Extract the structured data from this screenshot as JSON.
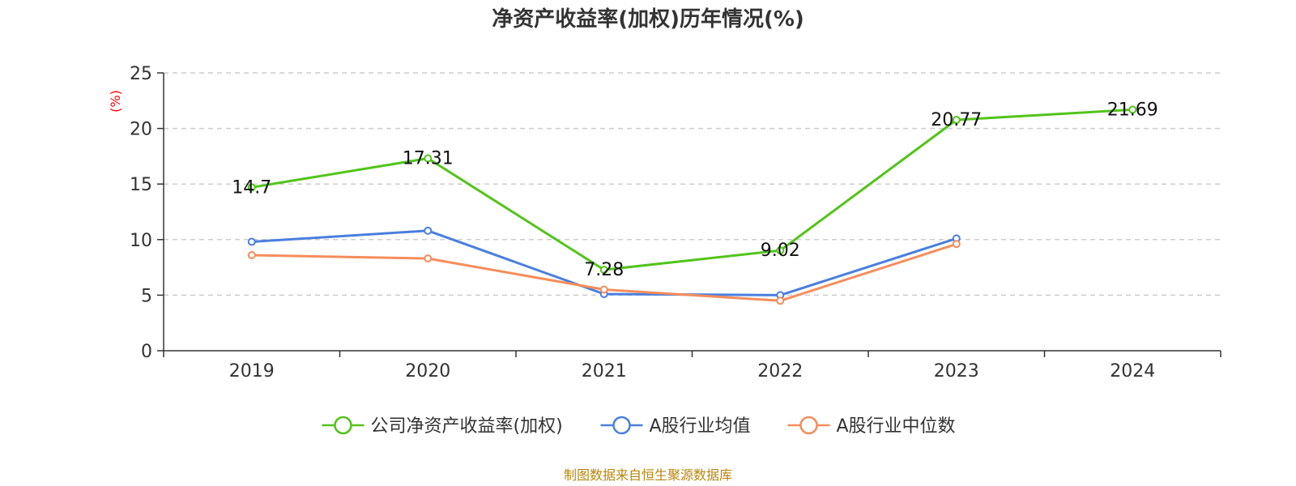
{
  "chart_data": {
    "type": "line",
    "title": "净资产收益率(加权)历年情况(%)",
    "ylabel": "(%)",
    "xlabel": "",
    "categories": [
      "2019",
      "2020",
      "2021",
      "2022",
      "2023",
      "2024"
    ],
    "ylim": [
      0,
      25
    ],
    "yticks": [
      0,
      5,
      10,
      15,
      20,
      25
    ],
    "grid": true,
    "legend_position": "bottom",
    "series": [
      {
        "name": "公司净资产收益率(加权)",
        "color": "#52c41a",
        "values": [
          14.7,
          17.31,
          7.28,
          9.02,
          20.77,
          21.69
        ],
        "show_labels": true
      },
      {
        "name": "A股行业均值",
        "color": "#4a7fdd",
        "values": [
          9.8,
          10.8,
          5.1,
          5.0,
          10.1,
          null
        ],
        "show_labels": false
      },
      {
        "name": "A股行业中位数",
        "color": "#f58d5b",
        "values": [
          8.6,
          8.3,
          5.5,
          4.5,
          9.6,
          null
        ],
        "show_labels": false
      }
    ],
    "data_labels": [
      "14.7",
      "17.31",
      "7.28",
      "9.02",
      "20.77",
      "21.69"
    ]
  },
  "source_text": "制图数据来自恒生聚源数据库"
}
